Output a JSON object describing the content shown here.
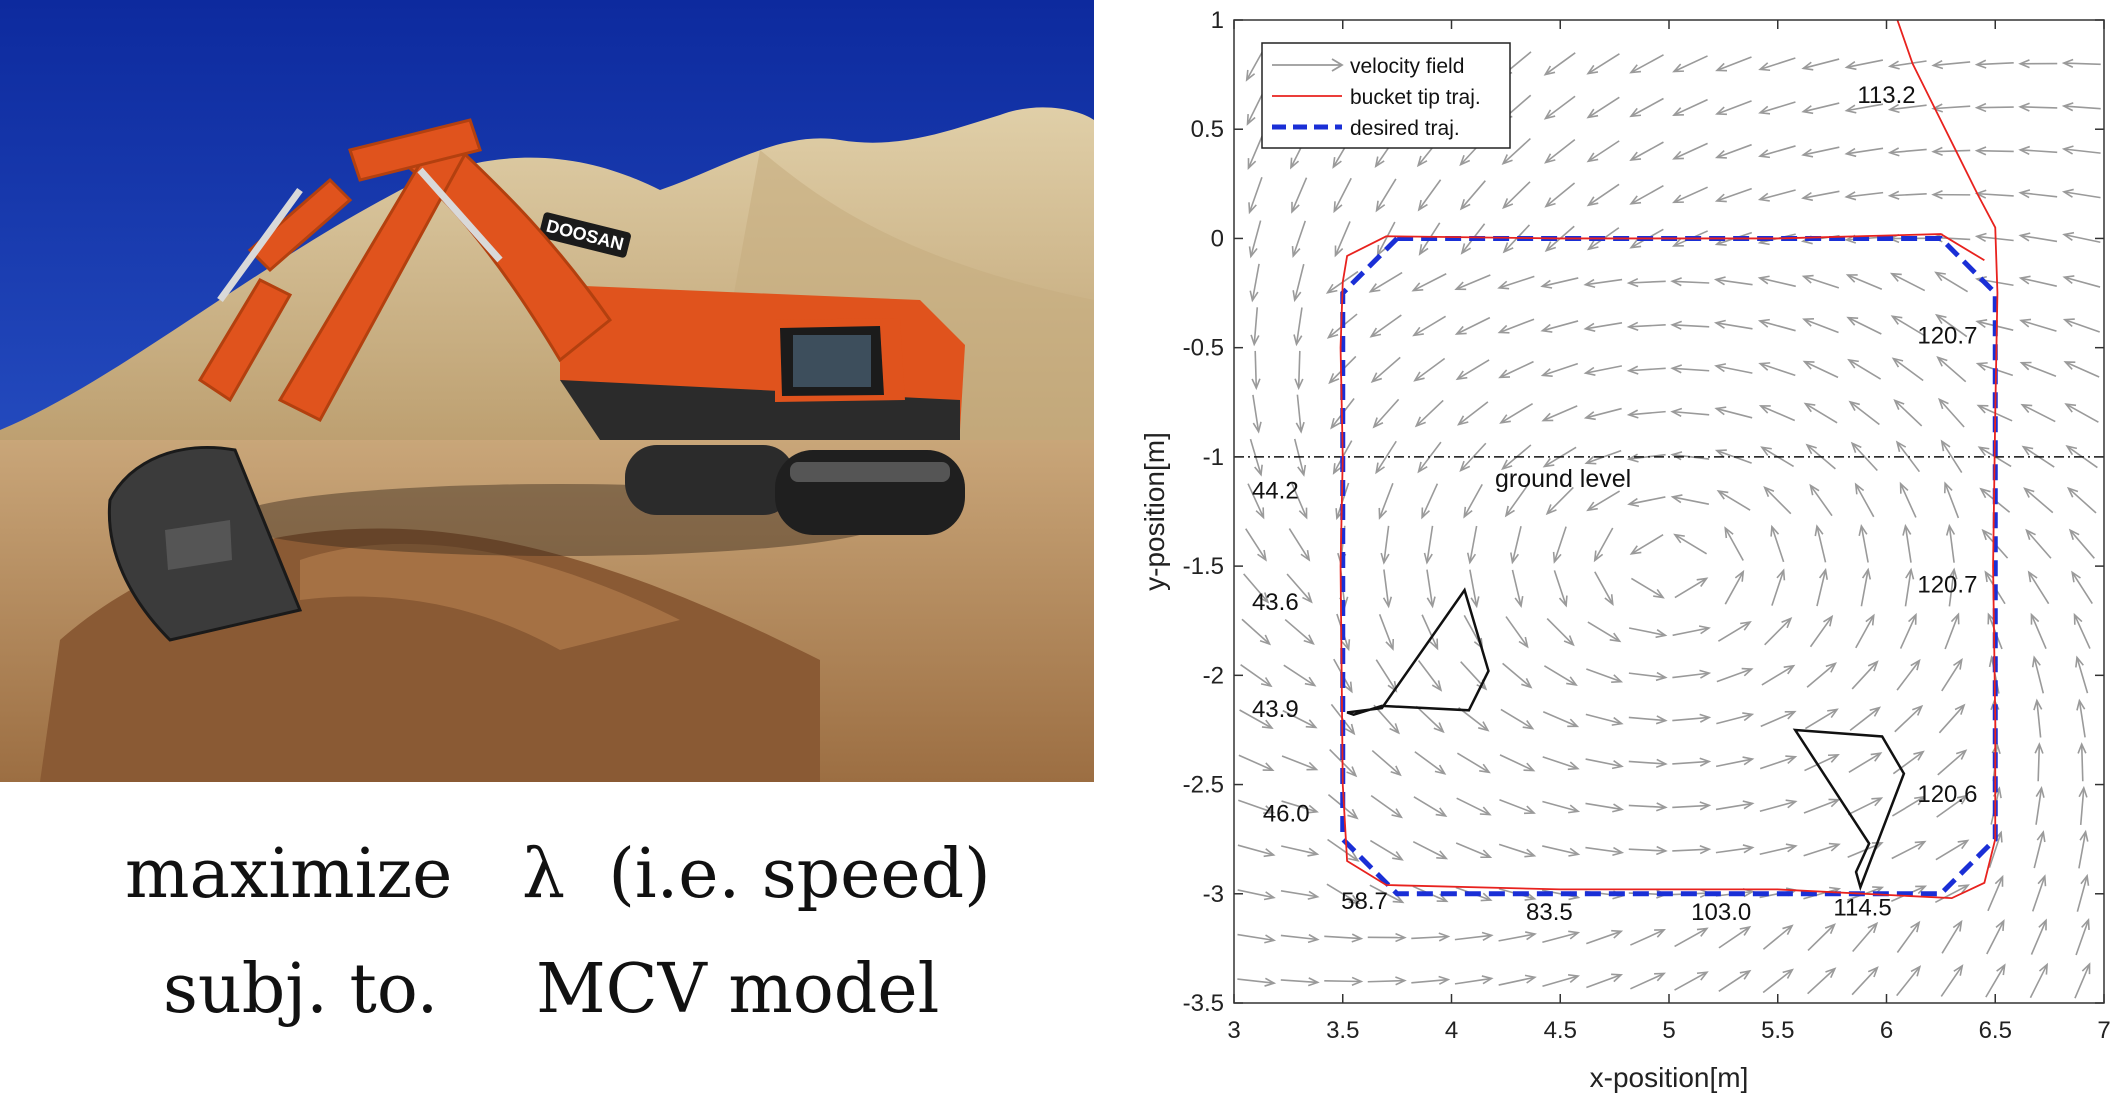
{
  "photo": {
    "brand_text": "DOOSAN",
    "colors": {
      "sky": "#1c3fb8",
      "machine": "#e0531d",
      "dirt": "#b48a5a",
      "hill": "#d2b98e"
    }
  },
  "formula": {
    "objective_keyword": "maximize",
    "objective_expr": "λ  (i.e. speed)",
    "constraint_keyword": "subj. to.",
    "constraint_expr": "MCV model"
  },
  "chart_data": {
    "type": "line",
    "xlabel": "x-position[m]",
    "ylabel": "y-position[m]",
    "xlim": [
      3,
      7
    ],
    "ylim": [
      -3.5,
      1
    ],
    "xticks": [
      "3",
      "3.5",
      "4",
      "4.5",
      "5",
      "5.5",
      "6",
      "6.5",
      "7"
    ],
    "yticks": [
      "1",
      "0.5",
      "0",
      "-0.5",
      "-1",
      "-1.5",
      "-2",
      "-2.5",
      "-3",
      "-3.5"
    ],
    "grid": false,
    "legend": {
      "position": "top-left",
      "entries": [
        "velocity field",
        "bucket tip traj.",
        "desired traj."
      ]
    },
    "ground_level": {
      "y": -1,
      "label": "ground level"
    },
    "series": [
      {
        "name": "desired traj.",
        "color": "#1a2fd6",
        "style": "dashed",
        "x": [
          3.75,
          6.25,
          6.5,
          6.5,
          6.25,
          3.75,
          3.5,
          3.5,
          3.75
        ],
        "y": [
          0,
          0,
          -0.25,
          -2.75,
          -3,
          -3,
          -2.75,
          -0.25,
          0
        ]
      },
      {
        "name": "bucket tip traj.",
        "color": "#e8221e",
        "style": "solid",
        "x": [
          6.05,
          6.12,
          6.22,
          6.32,
          6.42,
          6.5,
          6.51,
          6.5,
          6.49,
          6.5,
          6.5,
          6.45,
          6.3,
          5.5,
          4.5,
          3.7,
          3.52,
          3.5,
          3.49,
          3.5,
          3.49,
          3.5,
          3.52,
          3.7,
          4.5,
          5.5,
          6.25,
          6.45
        ],
        "y": [
          1,
          0.8,
          0.6,
          0.4,
          0.2,
          0.05,
          -0.25,
          -0.8,
          -1.5,
          -2.2,
          -2.75,
          -2.95,
          -3.02,
          -2.98,
          -2.98,
          -2.96,
          -2.85,
          -2.5,
          -1.5,
          -1.0,
          -0.5,
          -0.2,
          -0.08,
          0.01,
          0.0,
          0.0,
          0.02,
          -0.1
        ]
      }
    ],
    "annotations": [
      {
        "text": "113.2",
        "x": 6.0,
        "y": 0.62
      },
      {
        "text": "120.7",
        "x": 6.28,
        "y": -0.48
      },
      {
        "text": "120.7",
        "x": 6.28,
        "y": -1.62
      },
      {
        "text": "120.6",
        "x": 6.28,
        "y": -2.58
      },
      {
        "text": "114.5",
        "x": 5.89,
        "y": -3.1
      },
      {
        "text": "103.0",
        "x": 5.24,
        "y": -3.12
      },
      {
        "text": "83.5",
        "x": 4.45,
        "y": -3.12
      },
      {
        "text": "58.7",
        "x": 3.6,
        "y": -3.07
      },
      {
        "text": "46.0",
        "x": 3.24,
        "y": -2.67
      },
      {
        "text": "43.9",
        "x": 3.19,
        "y": -2.19
      },
      {
        "text": "43.6",
        "x": 3.19,
        "y": -1.7
      },
      {
        "text": "44.2",
        "x": 3.19,
        "y": -1.19
      }
    ],
    "obstacles": [
      [
        [
          3.52,
          -2.17
        ],
        [
          3.68,
          -2.15
        ],
        [
          4.06,
          -1.61
        ],
        [
          4.17,
          -1.98
        ],
        [
          4.08,
          -2.16
        ],
        [
          3.68,
          -2.14
        ],
        [
          3.55,
          -2.18
        ]
      ],
      [
        [
          5.58,
          -2.25
        ],
        [
          5.98,
          -2.28
        ],
        [
          6.08,
          -2.45
        ],
        [
          5.88,
          -2.97
        ],
        [
          5.86,
          -2.9
        ],
        [
          5.92,
          -2.77
        ]
      ]
    ]
  }
}
